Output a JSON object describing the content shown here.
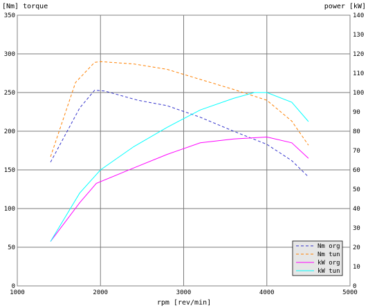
{
  "chart_data": {
    "type": "line",
    "left_axis_label": "[Nm] torque",
    "right_axis_label": "power [kW]",
    "xlabel": "rpm [rev/min]",
    "xlim": [
      1000,
      5000
    ],
    "ylim_left": [
      0,
      350
    ],
    "ylim_right": [
      0,
      140
    ],
    "x_ticks": [
      1000,
      2000,
      3000,
      4000,
      5000
    ],
    "y_ticks_left": [
      0,
      50,
      100,
      150,
      200,
      250,
      300,
      350
    ],
    "y_ticks_right": [
      0,
      10,
      20,
      30,
      40,
      50,
      60,
      70,
      80,
      90,
      100,
      110,
      120,
      130,
      140
    ],
    "grid": true,
    "legend_position": "bottom-right",
    "series": [
      {
        "name": "Nm org",
        "axis": "left",
        "color": "#3333cc",
        "dash": true,
        "x": [
          1400,
          1750,
          1930,
          2050,
          2450,
          2800,
          3200,
          3600,
          4000,
          4300,
          4500
        ],
        "y": [
          160,
          230,
          253,
          252,
          240,
          233,
          218,
          200,
          183,
          162,
          141
        ]
      },
      {
        "name": "Nm tun",
        "axis": "left",
        "color": "#ff8000",
        "dash": true,
        "x": [
          1400,
          1700,
          1930,
          2000,
          2400,
          2800,
          3200,
          3600,
          4000,
          4300,
          4500
        ],
        "y": [
          167,
          263,
          289,
          290,
          287,
          280,
          267,
          254,
          240,
          213,
          182
        ]
      },
      {
        "name": "kW org",
        "axis": "right",
        "color": "#ff00ff",
        "dash": false,
        "x": [
          1400,
          1750,
          1950,
          2400,
          2800,
          3200,
          3600,
          4000,
          4300,
          4500
        ],
        "y": [
          23,
          43,
          53,
          61,
          68,
          74,
          76,
          77,
          74,
          66
        ]
      },
      {
        "name": "kW tun",
        "axis": "right",
        "color": "#00ffff",
        "dash": false,
        "x": [
          1400,
          1750,
          2000,
          2400,
          2800,
          3200,
          3600,
          3850,
          4000,
          4300,
          4500
        ],
        "y": [
          23,
          48,
          60,
          72,
          82,
          91,
          97,
          100,
          100,
          95,
          85
        ]
      }
    ]
  }
}
